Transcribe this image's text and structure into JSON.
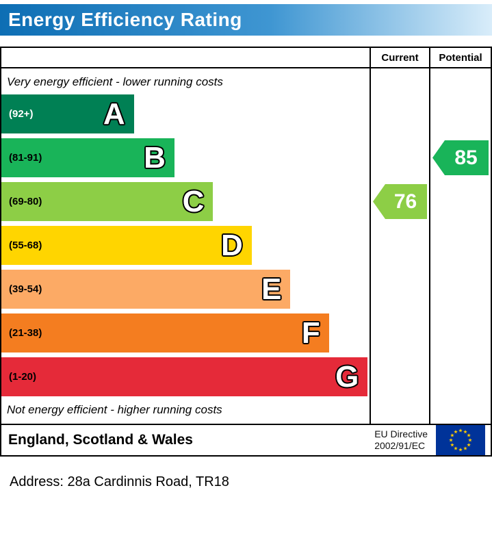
{
  "header": {
    "title": "Energy Efficiency Rating"
  },
  "table": {
    "current_label": "Current",
    "potential_label": "Potential"
  },
  "notes": {
    "top": "Very energy efficient - lower running costs",
    "bottom": "Not energy efficient - higher running costs"
  },
  "footer": {
    "region": "England, Scotland & Wales",
    "directive_line1": "EU Directive",
    "directive_line2": "2002/91/EC"
  },
  "address": "Address: 28a Cardinnis Road, TR18",
  "colors": {
    "banner_left": "#0d6eb4",
    "banner_mid": "#3f96d2",
    "banner_right": "#d9edfa",
    "flag_bg": "#003399",
    "flag_stars": "#ffcc00"
  },
  "chart_data": {
    "type": "bar",
    "title": "Energy Efficiency Rating",
    "categories": [
      "A",
      "B",
      "C",
      "D",
      "E",
      "F",
      "G"
    ],
    "bands": [
      {
        "letter": "A",
        "range": "(92+)",
        "min": 92,
        "max": 100,
        "color": "#008054",
        "width_pct": 36,
        "range_text_color": "#ffffff"
      },
      {
        "letter": "B",
        "range": "(81-91)",
        "min": 81,
        "max": 91,
        "color": "#19b459",
        "width_pct": 47,
        "range_text_color": "#000000"
      },
      {
        "letter": "C",
        "range": "(69-80)",
        "min": 69,
        "max": 80,
        "color": "#8dce46",
        "width_pct": 57.5,
        "range_text_color": "#000000"
      },
      {
        "letter": "D",
        "range": "(55-68)",
        "min": 55,
        "max": 68,
        "color": "#ffd500",
        "width_pct": 68,
        "range_text_color": "#000000"
      },
      {
        "letter": "E",
        "range": "(39-54)",
        "min": 39,
        "max": 54,
        "color": "#fcaa65",
        "width_pct": 78.5,
        "range_text_color": "#000000"
      },
      {
        "letter": "F",
        "range": "(21-38)",
        "min": 21,
        "max": 38,
        "color": "#f47d20",
        "width_pct": 89,
        "range_text_color": "#000000"
      },
      {
        "letter": "G",
        "range": "(1-20)",
        "min": 1,
        "max": 20,
        "color": "#e52a39",
        "width_pct": 99.5,
        "range_text_color": "#000000"
      }
    ],
    "current": {
      "value": 76,
      "band": "C",
      "color": "#8dce46"
    },
    "potential": {
      "value": 85,
      "band": "B",
      "color": "#19b459"
    }
  }
}
